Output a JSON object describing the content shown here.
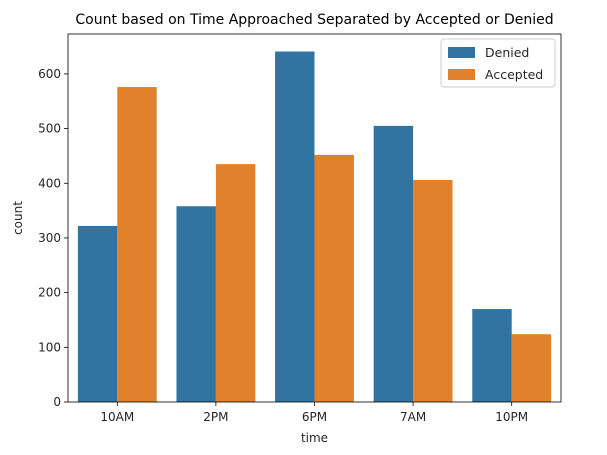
{
  "chart_data": {
    "type": "bar",
    "title": "Count based on Time Approached Separated by Accepted or Denied",
    "xlabel": "time",
    "ylabel": "count",
    "categories": [
      "10AM",
      "2PM",
      "6PM",
      "7AM",
      "10PM"
    ],
    "series": [
      {
        "name": "Denied",
        "color": "#3274a1",
        "values": [
          322,
          358,
          641,
          505,
          170
        ]
      },
      {
        "name": "Accepted",
        "color": "#e1812c",
        "values": [
          576,
          435,
          452,
          406,
          124
        ]
      }
    ],
    "ylim": [
      0,
      673
    ],
    "yticks": [
      0,
      100,
      200,
      300,
      400,
      500,
      600
    ],
    "grid": false,
    "legend_position": "top-right"
  }
}
